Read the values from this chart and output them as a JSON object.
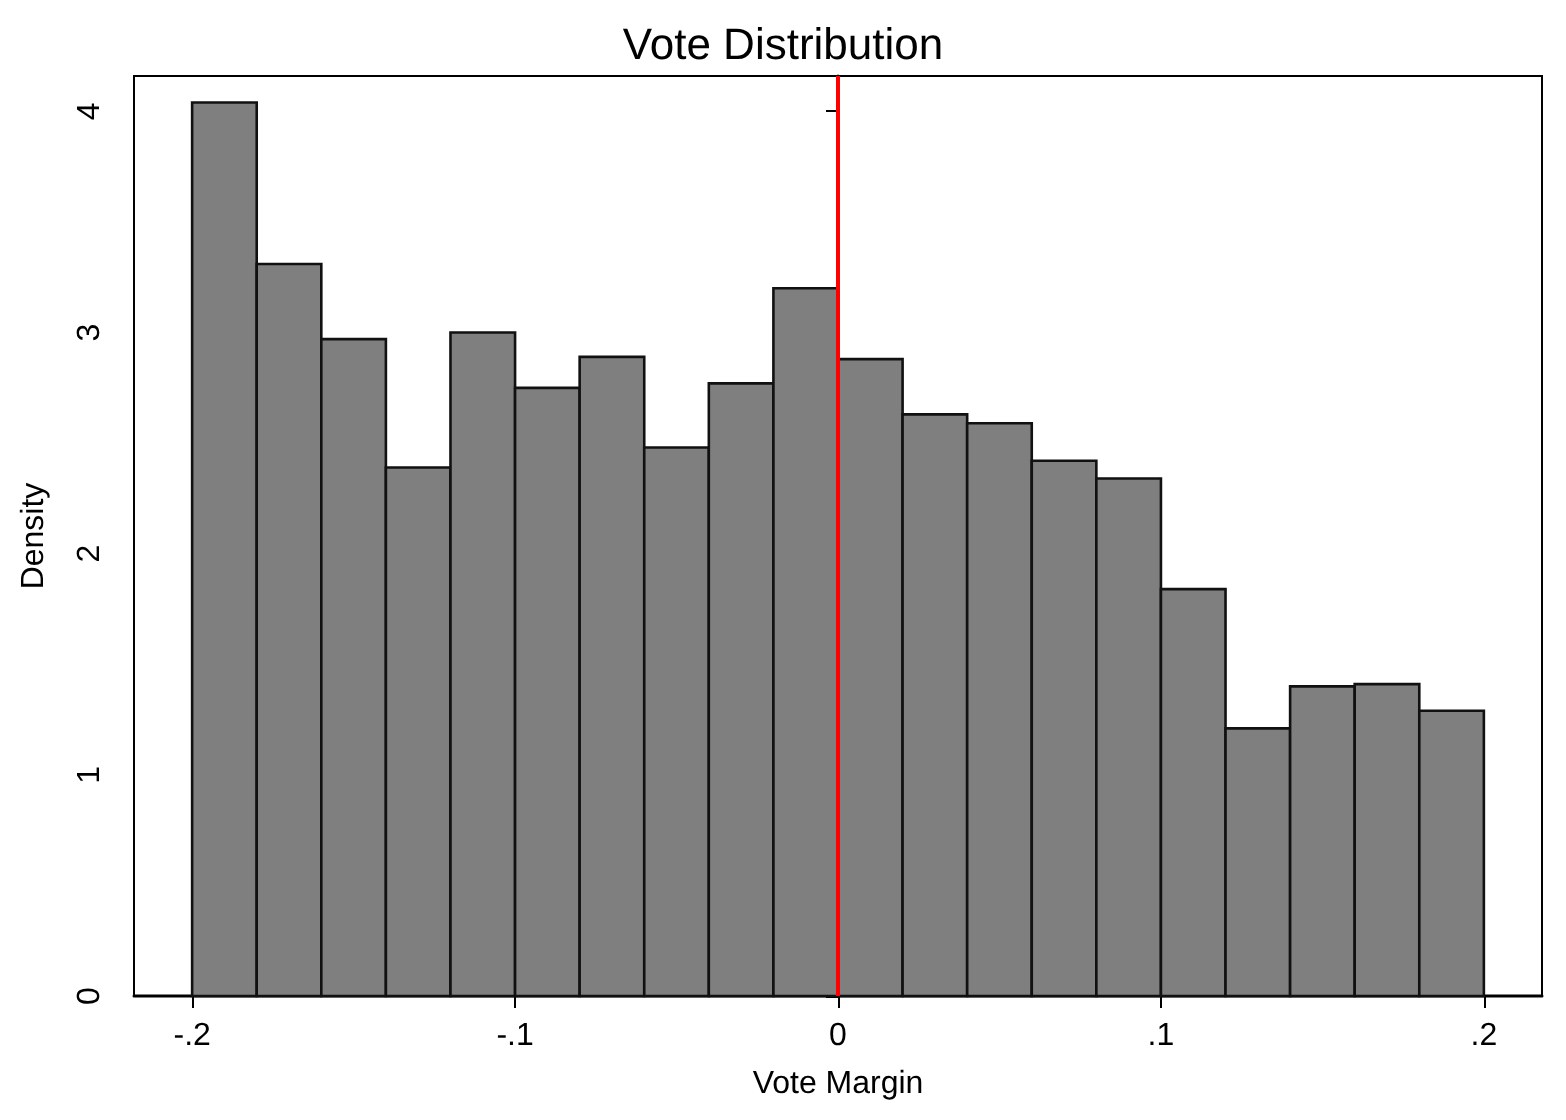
{
  "chart_data": {
    "type": "histogram",
    "title": "Vote Distribution",
    "xlabel": "Vote Margin",
    "ylabel": "Density",
    "bins": [
      -0.2,
      -0.18,
      -0.16,
      -0.14,
      -0.12,
      -0.1,
      -0.08,
      -0.06,
      -0.04,
      -0.02,
      0,
      0.02,
      0.04,
      0.06,
      0.08,
      0.1,
      0.12,
      0.14,
      0.16,
      0.18,
      0.2
    ],
    "values": [
      4.04,
      3.31,
      2.97,
      2.39,
      3.0,
      2.75,
      2.89,
      2.48,
      2.77,
      3.2,
      2.88,
      2.63,
      2.59,
      2.42,
      2.34,
      1.84,
      1.21,
      1.4,
      1.41,
      1.29
    ],
    "color": "#7f7f7f",
    "xlim": [
      -0.218,
      0.218
    ],
    "ylim": [
      0,
      4.16
    ],
    "xticks": [
      {
        "value": -0.2,
        "label": "-.2"
      },
      {
        "value": -0.1,
        "label": "-.1"
      },
      {
        "value": 0,
        "label": "0"
      },
      {
        "value": 0.1,
        "label": ".1"
      },
      {
        "value": 0.2,
        "label": ".2"
      }
    ],
    "yticks": [
      0,
      1,
      2,
      3,
      4
    ],
    "ref_lines": [
      {
        "axis": "x",
        "value": 0,
        "color": "#ff0000"
      }
    ],
    "grid": false
  }
}
